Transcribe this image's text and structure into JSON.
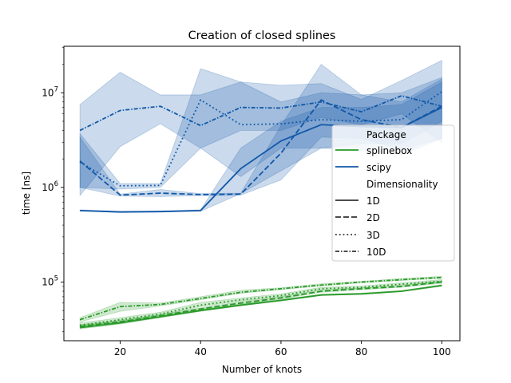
{
  "chart_data": {
    "type": "line",
    "title": "Creation of closed splines",
    "xlabel": "Number of knots",
    "ylabel": "time [ns]",
    "xlim": [
      6,
      104.5
    ],
    "ylim": [
      24000,
      31000000
    ],
    "yscale": "log",
    "grid": false,
    "x_ticks": [
      20,
      40,
      60,
      80,
      100
    ],
    "y_ticks": [
      {
        "value": 100000,
        "base": "10",
        "exp": "5"
      },
      {
        "value": 1000000,
        "base": "10",
        "exp": "6"
      },
      {
        "value": 10000000,
        "base": "10",
        "exp": "7"
      }
    ],
    "x": [
      10,
      20,
      30,
      40,
      50,
      60,
      70,
      80,
      90,
      100
    ],
    "colors": {
      "splinebox": "#2a9a2a",
      "scipy": "#1158a8"
    },
    "legend": {
      "placement": "center-right",
      "package_title": "Package",
      "packages": [
        "splinebox",
        "scipy"
      ],
      "dimensionality_title": "Dimensionality",
      "dimensions": [
        "1D",
        "2D",
        "3D",
        "10D"
      ]
    },
    "series": [
      {
        "package": "splinebox",
        "dim": "1D",
        "values": [
          33000,
          37000,
          43000,
          50000,
          57000,
          64000,
          73000,
          75000,
          80000,
          92000
        ],
        "lower": [
          32000,
          36000,
          42000,
          49000,
          56000,
          63000,
          72000,
          74000,
          79000,
          90000
        ],
        "upper": [
          34500,
          38500,
          44500,
          51500,
          58500,
          65500,
          74500,
          76500,
          81500,
          94000
        ]
      },
      {
        "package": "splinebox",
        "dim": "2D",
        "values": [
          34000,
          38000,
          44000,
          52000,
          60000,
          68000,
          80000,
          85000,
          90000,
          100000
        ],
        "lower": [
          33000,
          37000,
          42500,
          50500,
          58000,
          66000,
          78000,
          83000,
          88000,
          97000
        ],
        "upper": [
          35500,
          39500,
          45500,
          53500,
          62000,
          70000,
          82000,
          87000,
          92000,
          103000
        ]
      },
      {
        "package": "splinebox",
        "dim": "3D",
        "values": [
          35000,
          40000,
          46000,
          57000,
          65000,
          72000,
          85000,
          88000,
          95000,
          102000
        ],
        "lower": [
          34000,
          38500,
          44500,
          55000,
          63000,
          70000,
          83000,
          86000,
          93000,
          99000
        ],
        "upper": [
          37000,
          42000,
          48000,
          61000,
          68000,
          75000,
          88000,
          91000,
          98000,
          106000
        ]
      },
      {
        "package": "splinebox",
        "dim": "10D",
        "values": [
          40000,
          55000,
          58000,
          67000,
          78000,
          85000,
          93000,
          100000,
          106000,
          112000
        ],
        "lower": [
          38000,
          49000,
          56000,
          65000,
          76000,
          83000,
          91000,
          98000,
          104000,
          109000
        ],
        "upper": [
          42000,
          61000,
          60000,
          70000,
          82000,
          87000,
          96000,
          102000,
          109000,
          115000
        ]
      },
      {
        "package": "scipy",
        "dim": "1D",
        "values": [
          570000,
          550000,
          555000,
          570000,
          1580000,
          3100000,
          4600000,
          4400000,
          4300000,
          7000000
        ],
        "lower": [
          560000,
          545000,
          550000,
          560000,
          860000,
          1500000,
          2600000,
          2500000,
          2200000,
          3300000
        ],
        "upper": [
          580000,
          560000,
          565000,
          580000,
          2600000,
          5000000,
          7000000,
          7000000,
          7500000,
          13000000
        ]
      },
      {
        "package": "scipy",
        "dim": "2D",
        "values": [
          1900000,
          830000,
          870000,
          840000,
          850000,
          2300000,
          8400000,
          5200000,
          4300000,
          7200000
        ],
        "lower": [
          1000000,
          810000,
          800000,
          820000,
          830000,
          1200000,
          3400000,
          3300000,
          2500000,
          3300000
        ],
        "upper": [
          3400000,
          850000,
          950000,
          860000,
          870000,
          4500000,
          20000000,
          9500000,
          8000000,
          14000000
        ]
      },
      {
        "package": "scipy",
        "dim": "3D",
        "values": [
          1850000,
          1040000,
          1050000,
          8400000,
          4600000,
          4700000,
          5200000,
          5000000,
          5200000,
          10300000
        ],
        "lower": [
          1000000,
          960000,
          1000000,
          2600000,
          1300000,
          2600000,
          2600000,
          2900000,
          2900000,
          5000000
        ],
        "upper": [
          3700000,
          1100000,
          1100000,
          18000000,
          13000000,
          8000000,
          10000000,
          9500000,
          10000000,
          14500000
        ]
      },
      {
        "package": "scipy",
        "dim": "10D",
        "values": [
          4000000,
          6500000,
          7200000,
          4500000,
          7000000,
          6900000,
          8000000,
          6300000,
          9300000,
          7200000
        ],
        "lower": [
          820000,
          2700000,
          4700000,
          2600000,
          4000000,
          4000000,
          5500000,
          4600000,
          6000000,
          3000000
        ],
        "upper": [
          7500000,
          16500000,
          9500000,
          9500000,
          13000000,
          12000000,
          12500000,
          8500000,
          13500000,
          22000000
        ]
      }
    ]
  }
}
